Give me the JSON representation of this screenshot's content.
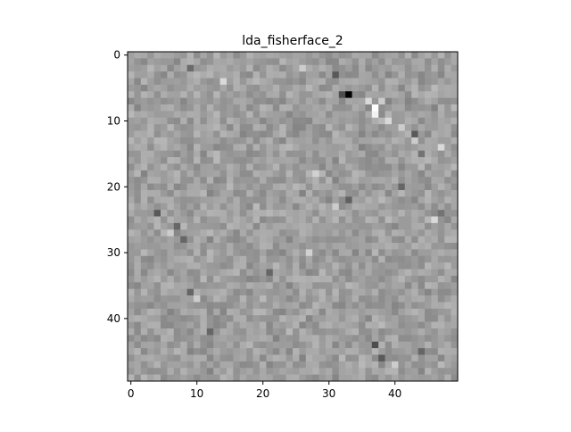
{
  "chart_data": {
    "type": "heatmap",
    "title": "lda_fisherface_2",
    "xlabel": "",
    "ylabel": "",
    "grid": false,
    "colormap": "gray",
    "rows": 50,
    "cols": 50,
    "xlim": [
      -0.5,
      49.5
    ],
    "ylim": [
      49.5,
      -0.5
    ],
    "x_ticks": [
      0,
      10,
      20,
      30,
      40
    ],
    "y_ticks": [
      0,
      10,
      20,
      30,
      40
    ],
    "x_tick_labels": [
      "0",
      "10",
      "20",
      "30",
      "40"
    ],
    "y_tick_labels": [
      "0",
      "10",
      "20",
      "30",
      "40"
    ],
    "base_value": 0.62,
    "value_range": [
      0,
      1
    ],
    "cells": [
      {
        "row": 6,
        "col": 33,
        "value": 0.0
      },
      {
        "row": 6,
        "col": 32,
        "value": 0.3
      },
      {
        "row": 7,
        "col": 36,
        "value": 0.85
      },
      {
        "row": 8,
        "col": 37,
        "value": 1.0
      },
      {
        "row": 9,
        "col": 37,
        "value": 0.95
      },
      {
        "row": 7,
        "col": 38,
        "value": 0.8
      },
      {
        "row": 10,
        "col": 39,
        "value": 0.85
      },
      {
        "row": 11,
        "col": 41,
        "value": 0.8
      },
      {
        "row": 12,
        "col": 43,
        "value": 0.35
      },
      {
        "row": 2,
        "col": 9,
        "value": 0.42
      },
      {
        "row": 4,
        "col": 14,
        "value": 0.85
      },
      {
        "row": 2,
        "col": 26,
        "value": 0.8
      },
      {
        "row": 3,
        "col": 31,
        "value": 0.35
      },
      {
        "row": 13,
        "col": 43,
        "value": 0.8
      },
      {
        "row": 15,
        "col": 44,
        "value": 0.45
      },
      {
        "row": 14,
        "col": 47,
        "value": 0.85
      },
      {
        "row": 24,
        "col": 4,
        "value": 0.35
      },
      {
        "row": 26,
        "col": 7,
        "value": 0.4
      },
      {
        "row": 27,
        "col": 6,
        "value": 0.8
      },
      {
        "row": 28,
        "col": 8,
        "value": 0.4
      },
      {
        "row": 25,
        "col": 46,
        "value": 0.85
      },
      {
        "row": 24,
        "col": 47,
        "value": 0.45
      },
      {
        "row": 36,
        "col": 9,
        "value": 0.4
      },
      {
        "row": 37,
        "col": 10,
        "value": 0.8
      },
      {
        "row": 42,
        "col": 12,
        "value": 0.4
      },
      {
        "row": 44,
        "col": 37,
        "value": 0.3
      },
      {
        "row": 46,
        "col": 38,
        "value": 0.35
      },
      {
        "row": 47,
        "col": 40,
        "value": 0.8
      },
      {
        "row": 45,
        "col": 44,
        "value": 0.4
      },
      {
        "row": 22,
        "col": 33,
        "value": 0.38
      },
      {
        "row": 23,
        "col": 31,
        "value": 0.8
      },
      {
        "row": 18,
        "col": 28,
        "value": 0.82
      },
      {
        "row": 20,
        "col": 41,
        "value": 0.4
      },
      {
        "row": 33,
        "col": 21,
        "value": 0.4
      },
      {
        "row": 30,
        "col": 27,
        "value": 0.82
      }
    ]
  }
}
